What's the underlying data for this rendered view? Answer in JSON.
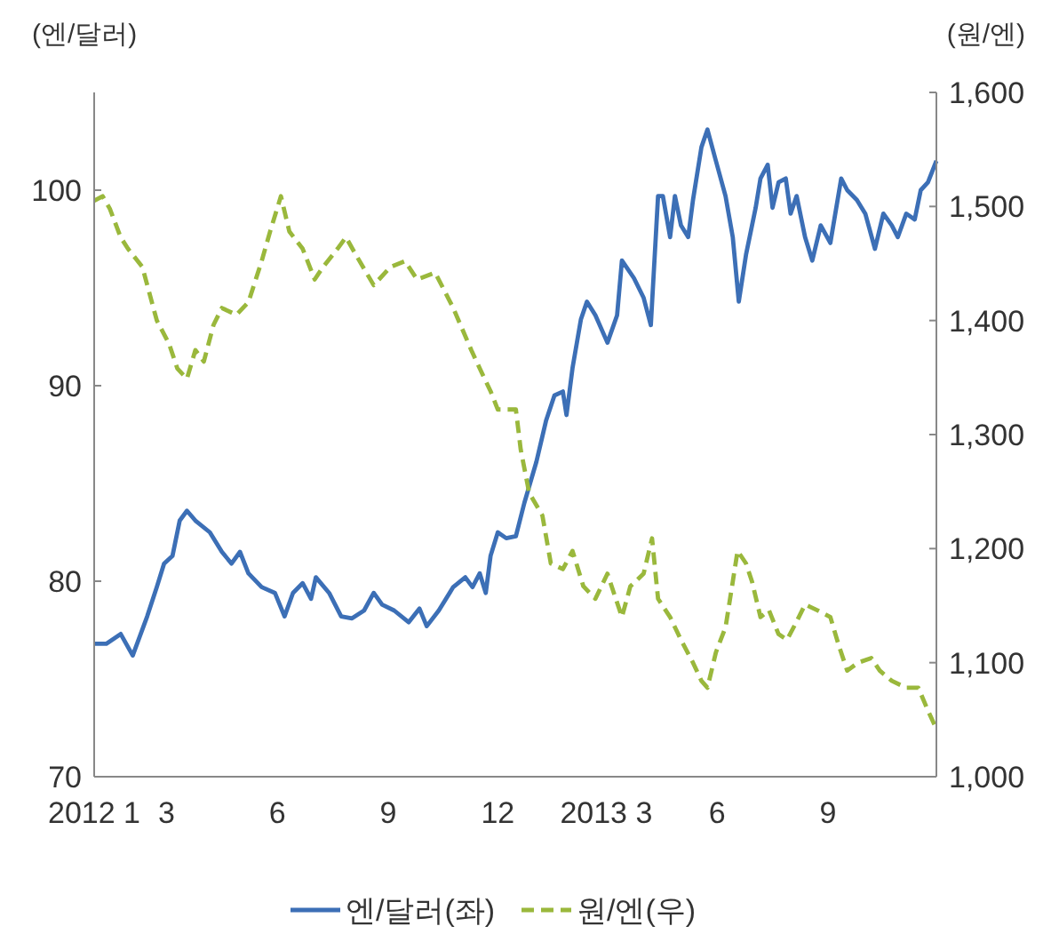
{
  "chart_data": {
    "type": "line",
    "ylabel": "(엔/달러)",
    "y2label": "(원/엔)",
    "legend": "bottom",
    "xlim": [
      "2012-01-01",
      "2013-11-30"
    ],
    "xticks": [
      {
        "value": "2012-01-01",
        "label": "2012 1"
      },
      {
        "value": "2012-03-01",
        "label": "3"
      },
      {
        "value": "2012-06-01",
        "label": "6"
      },
      {
        "value": "2012-09-01",
        "label": "9"
      },
      {
        "value": "2012-12-01",
        "label": "12"
      },
      {
        "value": "2013-03-01",
        "label": "2013 3"
      },
      {
        "value": "2013-06-01",
        "label": "6"
      },
      {
        "value": "2013-09-01",
        "label": "9"
      }
    ],
    "ylim": [
      70,
      105
    ],
    "yticks": [
      70,
      80,
      90,
      100
    ],
    "y2lim": [
      1000,
      1600
    ],
    "y2ticks": [
      {
        "value": 1000,
        "label": "1,000"
      },
      {
        "value": 1100,
        "label": "1,100"
      },
      {
        "value": 1200,
        "label": "1,200"
      },
      {
        "value": 1300,
        "label": "1,300"
      },
      {
        "value": 1400,
        "label": "1,400"
      },
      {
        "value": 1500,
        "label": "1,500"
      },
      {
        "value": 1600,
        "label": "1,600"
      }
    ],
    "series": [
      {
        "name": "엔/달러(좌)",
        "color": "#3c6fb6",
        "line_style": "solid",
        "x": [
          "2012-01-01",
          "2012-01-11",
          "2012-01-23",
          "2012-02-02",
          "2012-02-14",
          "2012-02-22",
          "2012-02-28",
          "2012-03-06",
          "2012-03-12",
          "2012-03-18",
          "2012-03-25",
          "2012-04-06",
          "2012-04-16",
          "2012-04-24",
          "2012-05-01",
          "2012-05-08",
          "2012-05-19",
          "2012-05-30",
          "2012-06-07",
          "2012-06-14",
          "2012-06-22",
          "2012-06-29",
          "2012-07-03",
          "2012-07-14",
          "2012-07-24",
          "2012-08-02",
          "2012-08-12",
          "2012-08-20",
          "2012-08-27",
          "2012-09-06",
          "2012-09-18",
          "2012-09-27",
          "2012-10-03",
          "2012-10-13",
          "2012-10-25",
          "2012-11-04",
          "2012-11-10",
          "2012-11-16",
          "2012-11-21",
          "2012-11-25",
          "2012-12-01",
          "2012-12-08",
          "2012-12-16",
          "2012-12-23",
          "2013-01-02",
          "2013-01-10",
          "2013-01-17",
          "2013-01-24",
          "2013-01-27",
          "2013-02-01",
          "2013-02-08",
          "2013-02-13",
          "2013-02-20",
          "2013-03-02",
          "2013-03-10",
          "2013-03-14",
          "2013-03-24",
          "2013-04-01",
          "2013-04-07",
          "2013-04-13",
          "2013-04-17",
          "2013-04-23",
          "2013-04-27",
          "2013-05-02",
          "2013-05-08",
          "2013-05-12",
          "2013-05-19",
          "2013-05-24",
          "2013-05-31",
          "2013-06-08",
          "2013-06-14",
          "2013-06-19",
          "2013-06-25",
          "2013-07-03",
          "2013-07-07",
          "2013-07-13",
          "2013-07-17",
          "2013-07-22",
          "2013-07-28",
          "2013-08-01",
          "2013-08-06",
          "2013-08-13",
          "2013-08-19",
          "2013-08-26",
          "2013-09-03",
          "2013-09-12",
          "2013-09-17",
          "2013-09-25",
          "2013-10-02",
          "2013-10-10",
          "2013-10-17",
          "2013-10-24",
          "2013-10-29",
          "2013-11-05",
          "2013-11-12",
          "2013-11-17",
          "2013-11-23",
          "2013-11-30"
        ],
        "values": [
          76.8,
          76.8,
          77.3,
          76.2,
          78.2,
          79.7,
          80.9,
          81.3,
          83.1,
          83.6,
          83.1,
          82.5,
          81.5,
          80.9,
          81.5,
          80.4,
          79.7,
          79.4,
          78.2,
          79.4,
          79.9,
          79.1,
          80.2,
          79.4,
          78.2,
          78.1,
          78.5,
          79.4,
          78.8,
          78.5,
          77.9,
          78.6,
          77.7,
          78.5,
          79.7,
          80.2,
          79.7,
          80.4,
          79.4,
          81.3,
          82.5,
          82.2,
          82.3,
          84.0,
          86.1,
          88.2,
          89.5,
          89.7,
          88.5,
          90.9,
          93.4,
          94.3,
          93.6,
          92.2,
          93.6,
          96.4,
          95.5,
          94.5,
          93.1,
          99.7,
          99.7,
          97.6,
          99.7,
          98.2,
          97.6,
          99.5,
          102.2,
          103.1,
          101.5,
          99.7,
          97.6,
          94.3,
          96.7,
          99.1,
          100.6,
          101.3,
          99.1,
          100.4,
          100.6,
          98.8,
          99.7,
          97.6,
          96.4,
          98.2,
          97.3,
          100.6,
          100.0,
          99.5,
          98.8,
          97.0,
          98.8,
          98.2,
          97.6,
          98.8,
          98.5,
          100.0,
          100.4,
          101.5
        ]
      },
      {
        "name": "원/엔(우)",
        "color": "#9ab83c",
        "line_style": "dashed",
        "axis": "y2",
        "x": [
          "2012-01-01",
          "2012-01-08",
          "2012-01-14",
          "2012-01-23",
          "2012-01-29",
          "2012-02-10",
          "2012-02-22",
          "2012-03-03",
          "2012-03-10",
          "2012-03-18",
          "2012-03-25",
          "2012-04-01",
          "2012-04-09",
          "2012-04-16",
          "2012-04-28",
          "2012-05-08",
          "2012-05-19",
          "2012-05-26",
          "2012-06-04",
          "2012-06-11",
          "2012-06-22",
          "2012-07-02",
          "2012-07-09",
          "2012-07-21",
          "2012-07-28",
          "2012-08-05",
          "2012-08-20",
          "2012-09-03",
          "2012-09-15",
          "2012-09-25",
          "2012-10-10",
          "2012-10-25",
          "2012-11-09",
          "2012-11-16",
          "2012-11-25",
          "2012-12-01",
          "2012-12-16",
          "2012-12-20",
          "2012-12-27",
          "2013-01-07",
          "2013-01-14",
          "2013-01-24",
          "2013-02-01",
          "2013-02-10",
          "2013-02-20",
          "2013-03-02",
          "2013-03-14",
          "2013-03-21",
          "2013-04-01",
          "2013-04-08",
          "2013-04-13",
          "2013-04-23",
          "2013-05-02",
          "2013-05-12",
          "2013-05-19",
          "2013-05-24",
          "2013-05-31",
          "2013-06-08",
          "2013-06-14",
          "2013-06-18",
          "2013-06-25",
          "2013-06-30",
          "2013-07-07",
          "2013-07-14",
          "2013-07-22",
          "2013-07-29",
          "2013-08-06",
          "2013-08-13",
          "2013-08-23",
          "2013-09-03",
          "2013-09-10",
          "2013-09-17",
          "2013-09-26",
          "2013-10-07",
          "2013-10-14",
          "2013-10-24",
          "2013-11-05",
          "2013-11-15",
          "2013-11-23",
          "2013-11-30"
        ],
        "values": [
          1505,
          1509,
          1498,
          1473,
          1463,
          1447,
          1400,
          1380,
          1358,
          1349,
          1374,
          1364,
          1396,
          1411,
          1405,
          1416,
          1452,
          1478,
          1509,
          1478,
          1463,
          1436,
          1447,
          1463,
          1473,
          1458,
          1431,
          1447,
          1452,
          1436,
          1442,
          1411,
          1374,
          1358,
          1338,
          1322,
          1322,
          1287,
          1249,
          1229,
          1187,
          1182,
          1198,
          1167,
          1156,
          1178,
          1140,
          1167,
          1178,
          1209,
          1156,
          1140,
          1120,
          1100,
          1084,
          1078,
          1109,
          1131,
          1171,
          1198,
          1187,
          1171,
          1140,
          1146,
          1125,
          1120,
          1136,
          1151,
          1146,
          1140,
          1115,
          1093,
          1100,
          1104,
          1093,
          1084,
          1078,
          1078,
          1058,
          1042
        ]
      }
    ]
  }
}
